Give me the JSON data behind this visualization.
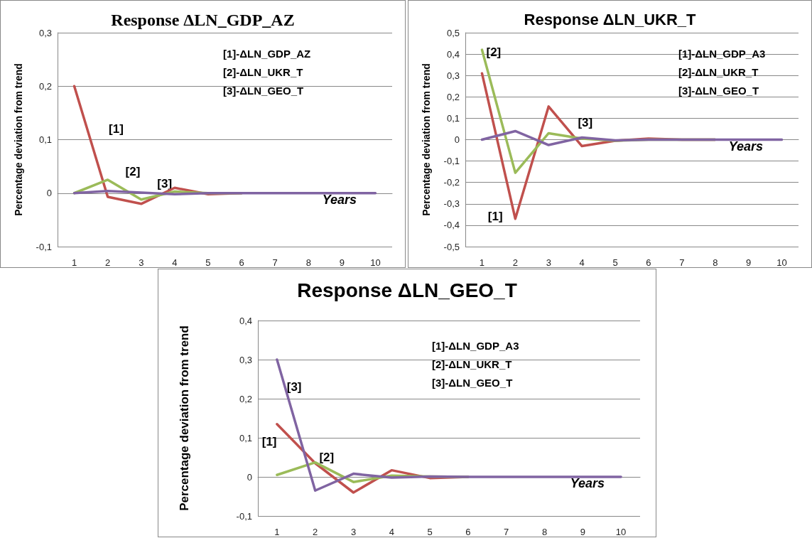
{
  "chart_data": [
    {
      "type": "line",
      "title": "Response ΔLN_GDP_AZ",
      "ylabel": "Percentage deviation from trend",
      "xlabel": "Years",
      "x": [
        1,
        2,
        3,
        4,
        5,
        6,
        7,
        8,
        9,
        10
      ],
      "xlim": [
        0.5,
        10.5
      ],
      "xticks": [
        1,
        2,
        3,
        4,
        5,
        6,
        7,
        8,
        9,
        10
      ],
      "ylim": [
        -0.1,
        0.3
      ],
      "yticks": [
        {
          "value": -0.1,
          "label": "-0,1"
        },
        {
          "value": 0,
          "label": "0"
        },
        {
          "value": 0.1,
          "label": "0,1"
        },
        {
          "value": 0.2,
          "label": "0,2"
        },
        {
          "value": 0.3,
          "label": "0,3"
        }
      ],
      "grid": "y",
      "marker": "none",
      "line_style": "solid",
      "series": [
        {
          "name": "[1]",
          "color": "#c0504d",
          "values": [
            0.2,
            -0.007,
            -0.02,
            0.01,
            -0.002,
            0,
            null,
            null,
            null,
            null
          ]
        },
        {
          "name": "[2]",
          "color": "#9bbb59",
          "values": [
            0,
            0.025,
            -0.012,
            0.003,
            0,
            0,
            null,
            null,
            null,
            null
          ]
        },
        {
          "name": "[3]",
          "color": "#8064a2",
          "values": [
            0,
            0.004,
            0.001,
            -0.002,
            0,
            0,
            0,
            0,
            0,
            0
          ]
        }
      ],
      "annotations": [
        "[1]-ΔLN_GDP_AZ",
        "[2]-ΔLN_UKR_T",
        "[3]-ΔLN_GEO_T"
      ]
    },
    {
      "type": "line",
      "title": "Response ΔLN_UKR_T",
      "ylabel": "Percentage deviation from trend",
      "xlabel": "Years",
      "x": [
        1,
        2,
        3,
        4,
        5,
        6,
        7,
        8,
        9,
        10
      ],
      "xlim": [
        0.5,
        10.5
      ],
      "xticks": [
        1,
        2,
        3,
        4,
        5,
        6,
        7,
        8,
        9,
        10
      ],
      "ylim": [
        -0.5,
        0.5
      ],
      "yticks": [
        {
          "value": -0.5,
          "label": "-0,5"
        },
        {
          "value": -0.4,
          "label": "-0,4"
        },
        {
          "value": -0.3,
          "label": "-0,3"
        },
        {
          "value": -0.2,
          "label": "-0,2"
        },
        {
          "value": -0.1,
          "label": "-0,1"
        },
        {
          "value": 0,
          "label": "0"
        },
        {
          "value": 0.1,
          "label": "0,1"
        },
        {
          "value": 0.2,
          "label": "0,2"
        },
        {
          "value": 0.3,
          "label": "0,3"
        },
        {
          "value": 0.4,
          "label": "0,4"
        },
        {
          "value": 0.5,
          "label": "0,5"
        }
      ],
      "grid": "y",
      "marker": "none",
      "line_style": "solid",
      "series": [
        {
          "name": "[1]",
          "color": "#c0504d",
          "values": [
            0.31,
            -0.37,
            0.155,
            -0.03,
            -0.005,
            0.005,
            0,
            0,
            null,
            null
          ]
        },
        {
          "name": "[2]",
          "color": "#9bbb59",
          "values": [
            0.42,
            -0.155,
            0.03,
            0.005,
            -0.005,
            0,
            0,
            0,
            null,
            null
          ]
        },
        {
          "name": "[3]",
          "color": "#8064a2",
          "values": [
            0,
            0.04,
            -0.025,
            0.01,
            -0.003,
            0,
            0,
            0,
            0,
            0
          ]
        }
      ],
      "annotations": [
        "[1]-ΔLN_GDP_A3",
        "[2]-ΔLN_UKR_T",
        "[3]-ΔLN_GEO_T"
      ]
    },
    {
      "type": "line",
      "title": "Response ΔLN_GEO_T",
      "ylabel": "Percentage deviation from trend",
      "xlabel": "Years",
      "x": [
        1,
        2,
        3,
        4,
        5,
        6,
        7,
        8,
        9,
        10
      ],
      "xlim": [
        0.5,
        10.5
      ],
      "xticks": [
        1,
        2,
        3,
        4,
        5,
        6,
        7,
        8,
        9,
        10
      ],
      "ylim": [
        -0.1,
        0.4
      ],
      "yticks": [
        {
          "value": -0.1,
          "label": "-0,1"
        },
        {
          "value": 0,
          "label": "0"
        },
        {
          "value": 0.1,
          "label": "0,1"
        },
        {
          "value": 0.2,
          "label": "0,2"
        },
        {
          "value": 0.3,
          "label": "0,3"
        },
        {
          "value": 0.4,
          "label": "0,4"
        }
      ],
      "grid": "y",
      "marker": "none",
      "line_style": "solid",
      "series": [
        {
          "name": "[1]",
          "color": "#c0504d",
          "values": [
            0.135,
            0.035,
            -0.04,
            0.017,
            -0.003,
            0,
            null,
            null,
            null,
            null
          ]
        },
        {
          "name": "[2]",
          "color": "#9bbb59",
          "values": [
            0.005,
            0.037,
            -0.013,
            0.003,
            0.001,
            0,
            null,
            null,
            null,
            null
          ]
        },
        {
          "name": "[3]",
          "color": "#8064a2",
          "values": [
            0.3,
            -0.035,
            0.008,
            -0.002,
            0.001,
            0,
            0,
            0,
            0,
            0
          ]
        }
      ],
      "annotations": [
        "[1]-ΔLN_GDP_A3",
        "[2]-ΔLN_UKR_T",
        "[3]-ΔLN_GEO_T"
      ]
    }
  ]
}
